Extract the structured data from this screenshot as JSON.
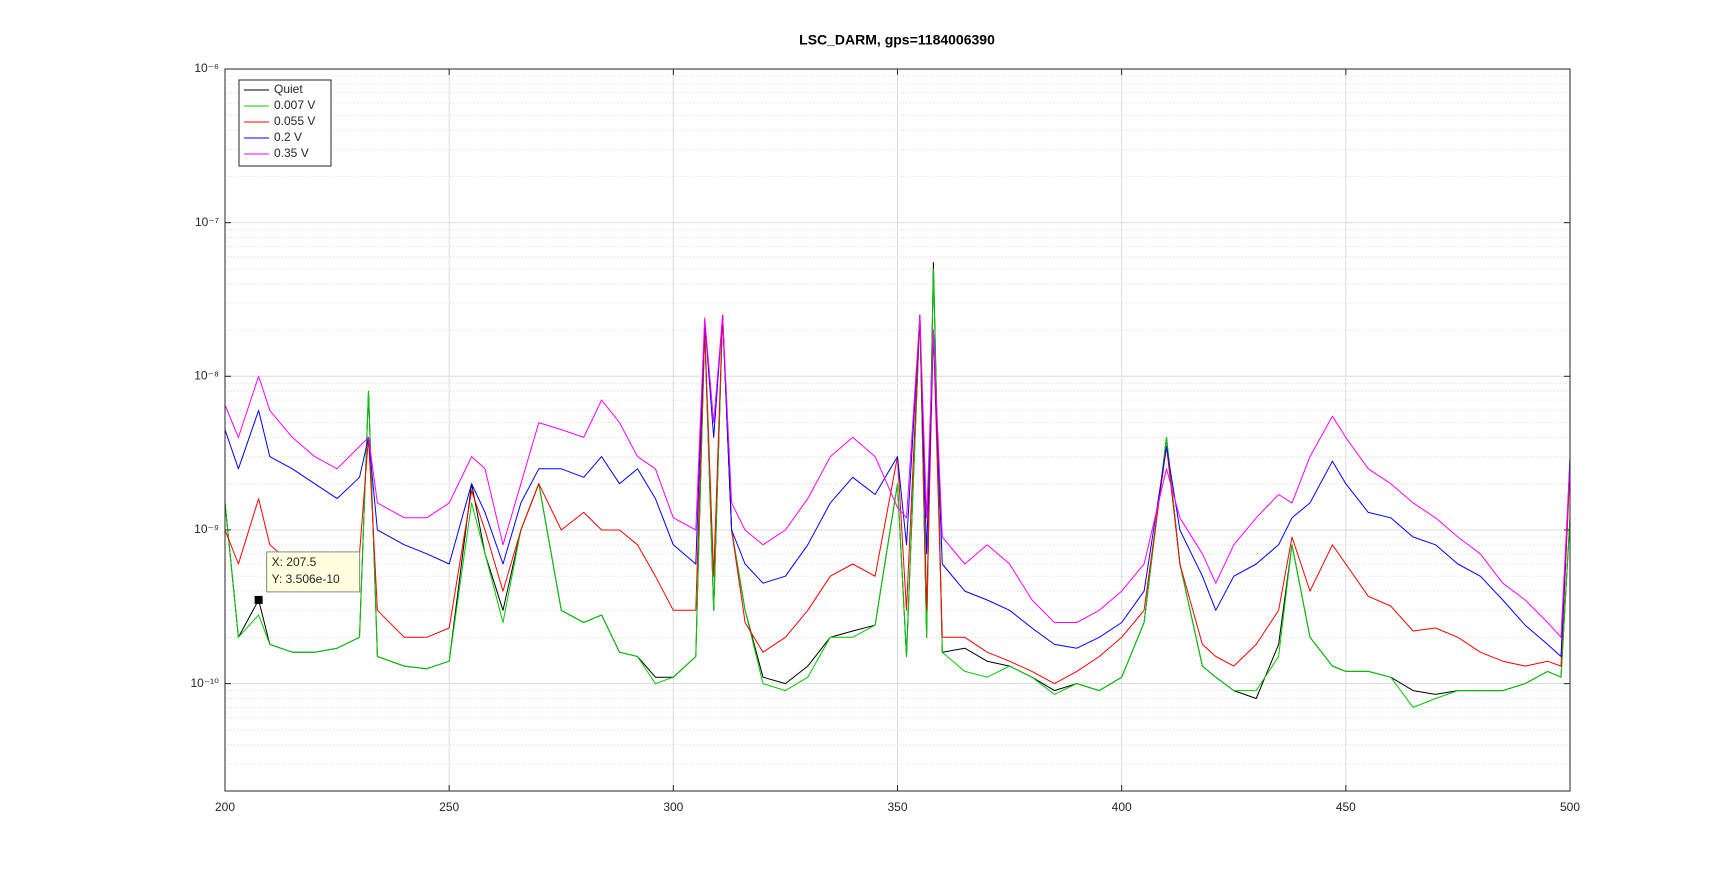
{
  "chart_data": {
    "type": "line",
    "title": "LSC_DARM, gps=1184006390",
    "log_y": true,
    "grid": true,
    "minor_grid": true,
    "legend": "northwest",
    "xlim": [
      200,
      500
    ],
    "xticks": [
      200,
      250,
      300,
      350,
      400,
      450,
      500
    ],
    "ylim": [
      2e-11,
      1e-06
    ],
    "yticks": [
      {
        "value": 1e-10,
        "label": "10⁻¹⁰"
      },
      {
        "value": 1e-09,
        "label": "10⁻⁹"
      },
      {
        "value": 1e-08,
        "label": "10⁻⁸"
      },
      {
        "value": 1e-07,
        "label": "10⁻⁷"
      },
      {
        "value": 1e-06,
        "label": "10⁻⁶"
      }
    ],
    "x": [
      200,
      203,
      207.5,
      210,
      215,
      220,
      225,
      230,
      232,
      234,
      240,
      245,
      250,
      255,
      258,
      262,
      266,
      270,
      275,
      280,
      284,
      288,
      292,
      296,
      300,
      305,
      307,
      309,
      311,
      313,
      316,
      320,
      325,
      330,
      335,
      340,
      345,
      350,
      352,
      355,
      356.5,
      358,
      360,
      365,
      370,
      375,
      380,
      385,
      390,
      395,
      400,
      405,
      410,
      413,
      418,
      421,
      425,
      430,
      435,
      438,
      442,
      447,
      450,
      455,
      460,
      465,
      470,
      475,
      480,
      485,
      490,
      495,
      498,
      500
    ],
    "series": [
      {
        "name": "Quiet",
        "color": "#000000",
        "values": [
          1.5e-09,
          2e-10,
          3.5e-10,
          1.8e-10,
          1.6e-10,
          1.6e-10,
          1.7e-10,
          2e-10,
          8e-09,
          1.5e-10,
          1.3e-10,
          1.25e-10,
          1.4e-10,
          2e-09,
          7e-10,
          3e-10,
          1e-09,
          2e-09,
          3e-10,
          2.5e-10,
          2.8e-10,
          1.6e-10,
          1.5e-10,
          1.1e-10,
          1.1e-10,
          1.5e-10,
          2e-08,
          3e-10,
          2.5e-08,
          1e-09,
          3e-10,
          1.1e-10,
          1e-10,
          1.3e-10,
          2e-10,
          2.2e-10,
          2.4e-10,
          2e-09,
          1.5e-10,
          2.5e-08,
          2e-10,
          5.5e-08,
          1.6e-10,
          1.7e-10,
          1.4e-10,
          1.3e-10,
          1.1e-10,
          9e-11,
          1e-10,
          9e-11,
          1.1e-10,
          2.5e-10,
          4e-09,
          6e-10,
          1.3e-10,
          1.1e-10,
          9e-11,
          8e-11,
          1.8e-10,
          8e-10,
          2e-10,
          1.3e-10,
          1.2e-10,
          1.2e-10,
          1.1e-10,
          9e-11,
          8.5e-11,
          9e-11,
          9e-11,
          9e-11,
          1e-10,
          1.2e-10,
          1.1e-10,
          1.2e-09
        ]
      },
      {
        "name": "0.007 V",
        "color": "#00cc00",
        "values": [
          1.5e-09,
          2e-10,
          2.8e-10,
          1.8e-10,
          1.6e-10,
          1.6e-10,
          1.7e-10,
          2e-10,
          8e-09,
          1.5e-10,
          1.3e-10,
          1.25e-10,
          1.4e-10,
          1.5e-09,
          7e-10,
          2.5e-10,
          1e-09,
          2e-09,
          3e-10,
          2.5e-10,
          2.8e-10,
          1.6e-10,
          1.5e-10,
          1e-10,
          1.1e-10,
          1.5e-10,
          2e-08,
          3e-10,
          2.5e-08,
          1e-09,
          3e-10,
          1e-10,
          9e-11,
          1.1e-10,
          2e-10,
          2e-10,
          2.4e-10,
          2e-09,
          1.5e-10,
          2.5e-08,
          2e-10,
          5e-08,
          1.6e-10,
          1.2e-10,
          1.1e-10,
          1.3e-10,
          1.1e-10,
          8.5e-11,
          1e-10,
          9e-11,
          1.1e-10,
          2.5e-10,
          4e-09,
          6e-10,
          1.3e-10,
          1.1e-10,
          9e-11,
          9e-11,
          1.5e-10,
          8e-10,
          2e-10,
          1.3e-10,
          1.2e-10,
          1.2e-10,
          1.1e-10,
          7e-11,
          8e-11,
          9e-11,
          9e-11,
          9e-11,
          1e-10,
          1.2e-10,
          1.1e-10,
          1.2e-09
        ]
      },
      {
        "name": "0.055 V",
        "color": "#ff0000",
        "values": [
          1e-09,
          6e-10,
          1.6e-09,
          8e-10,
          6e-10,
          5e-10,
          5e-10,
          7e-10,
          4e-09,
          3e-10,
          2e-10,
          2e-10,
          2.3e-10,
          1.8e-09,
          1e-09,
          4e-10,
          1e-09,
          2e-09,
          1e-09,
          1.3e-09,
          1e-09,
          1e-09,
          8e-10,
          5e-10,
          3e-10,
          3e-10,
          2e-08,
          5e-10,
          2.5e-08,
          1e-09,
          2.5e-10,
          1.6e-10,
          2e-10,
          3e-10,
          5e-10,
          6e-10,
          5e-10,
          3e-09,
          3e-10,
          2.5e-08,
          3e-10,
          2e-08,
          2e-10,
          2e-10,
          1.6e-10,
          1.4e-10,
          1.2e-10,
          1e-10,
          1.2e-10,
          1.5e-10,
          2e-10,
          3e-10,
          3.5e-09,
          6e-10,
          1.8e-10,
          1.5e-10,
          1.3e-10,
          1.8e-10,
          3e-10,
          9e-10,
          4e-10,
          8e-10,
          6e-10,
          3.7e-10,
          3.2e-10,
          2.2e-10,
          2.3e-10,
          2e-10,
          1.6e-10,
          1.4e-10,
          1.3e-10,
          1.4e-10,
          1.3e-10,
          2.5e-09
        ]
      },
      {
        "name": "0.2 V",
        "color": "#0000ff",
        "values": [
          4.5e-09,
          2.5e-09,
          6e-09,
          3e-09,
          2.5e-09,
          2e-09,
          1.6e-09,
          2.2e-09,
          4e-09,
          1e-09,
          8e-10,
          7e-10,
          6e-10,
          2e-09,
          1.3e-09,
          6e-10,
          1.5e-09,
          2.5e-09,
          2.5e-09,
          2.2e-09,
          3e-09,
          2e-09,
          2.5e-09,
          1.6e-09,
          8e-10,
          6e-10,
          2.3e-08,
          4e-09,
          2.5e-08,
          1e-09,
          6e-10,
          4.5e-10,
          5e-10,
          8e-10,
          1.5e-09,
          2.2e-09,
          1.7e-09,
          3e-09,
          8e-10,
          2.5e-08,
          7e-10,
          2e-08,
          6e-10,
          4e-10,
          3.5e-10,
          3e-10,
          2.3e-10,
          1.8e-10,
          1.7e-10,
          2e-10,
          2.5e-10,
          4e-10,
          3.5e-09,
          1e-09,
          5e-10,
          3e-10,
          5e-10,
          6e-10,
          8e-10,
          1.2e-09,
          1.5e-09,
          2.8e-09,
          2e-09,
          1.3e-09,
          1.2e-09,
          9e-10,
          8e-10,
          6e-10,
          5e-10,
          3.5e-10,
          2.4e-10,
          1.8e-10,
          1.5e-10,
          3e-09
        ]
      },
      {
        "name": "0.35 V",
        "color": "#ff00ff",
        "values": [
          6.5e-09,
          4e-09,
          1e-08,
          6e-09,
          4e-09,
          3e-09,
          2.5e-09,
          3.5e-09,
          4e-09,
          1.5e-09,
          1.2e-09,
          1.2e-09,
          1.5e-09,
          3e-09,
          2.5e-09,
          8e-10,
          2e-09,
          5e-09,
          4.5e-09,
          4e-09,
          7e-09,
          5e-09,
          3e-09,
          2.5e-09,
          1.2e-09,
          1e-09,
          2.4e-08,
          5e-09,
          2.5e-08,
          1.5e-09,
          1e-09,
          8e-10,
          1e-09,
          1.6e-09,
          3e-09,
          4e-09,
          3e-09,
          1.4e-09,
          1.2e-09,
          2.5e-08,
          1.2e-09,
          2e-08,
          9e-10,
          6e-10,
          8e-10,
          6e-10,
          3.5e-10,
          2.5e-10,
          2.5e-10,
          3e-10,
          4e-10,
          6e-10,
          2.5e-09,
          1.2e-09,
          7e-10,
          4.5e-10,
          8e-10,
          1.2e-09,
          1.7e-09,
          1.5e-09,
          3e-09,
          5.5e-09,
          4e-09,
          2.5e-09,
          2e-09,
          1.5e-09,
          1.2e-09,
          9e-10,
          7e-10,
          4.5e-10,
          3.5e-10,
          2.5e-10,
          2e-10,
          2.8e-09
        ]
      }
    ],
    "datatip": {
      "x": 207.5,
      "y": 3.506e-10,
      "lines": [
        "X: 207.5",
        "Y: 3.506e-10"
      ]
    }
  }
}
